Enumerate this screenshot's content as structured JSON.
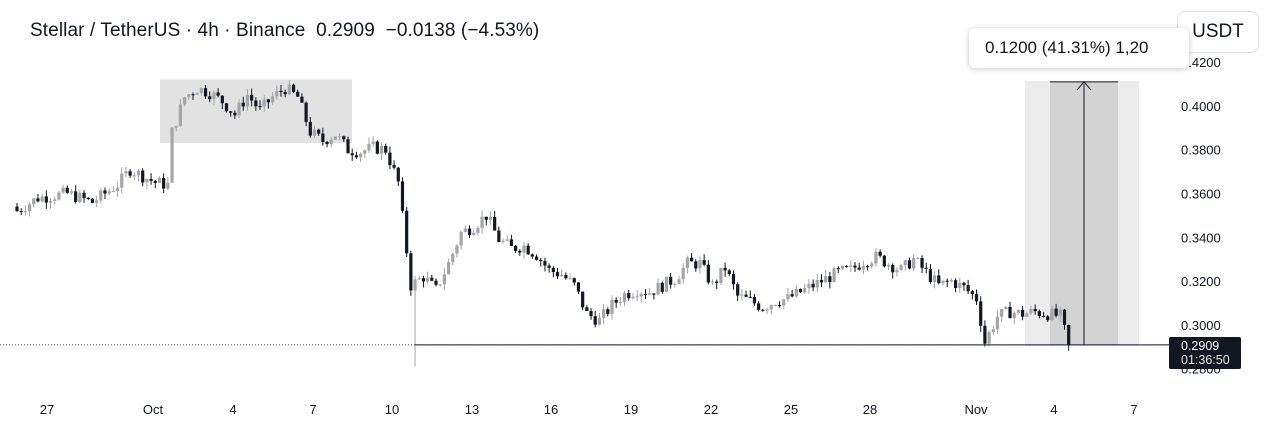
{
  "header": {
    "title": "Stellar / TetherUS · 4h · Binance  0.2909  −0.0138 (−4.53%)",
    "currency_button": "USDT"
  },
  "measure_tool": {
    "label": "0.1200 (41.31%) 1,20",
    "from_price": 0.2909,
    "to_price": 0.4109
  },
  "last_price": {
    "price": "0.2909",
    "countdown": "01:36:50"
  },
  "colors": {
    "up": "#a5a5a5",
    "down": "#131722",
    "highlight_box": "#e2e2e2",
    "measure_box": "#d3d3d3",
    "price_tag": "#131722"
  },
  "chart_data": {
    "type": "candlestick",
    "symbol": "Stellar / TetherUS",
    "interval": "4h",
    "exchange": "Binance",
    "y_ticks": [
      "0.4200",
      "0.4000",
      "0.3800",
      "0.3600",
      "0.3400",
      "0.3200",
      "0.3000",
      "0.2800"
    ],
    "x_ticks": [
      "27",
      "Oct",
      "4",
      "7",
      "10",
      "13",
      "16",
      "19",
      "22",
      "25",
      "28",
      "Nov",
      "4",
      "7"
    ],
    "ylim": [
      0.279,
      0.423
    ],
    "approx_close_path": [
      [
        0,
        0.352
      ],
      [
        5,
        0.358
      ],
      [
        12,
        0.36
      ],
      [
        18,
        0.356
      ],
      [
        24,
        0.364
      ],
      [
        27,
        0.371
      ],
      [
        33,
        0.365
      ],
      [
        36,
        0.364
      ],
      [
        37,
        0.388
      ],
      [
        40,
        0.404
      ],
      [
        43,
        0.408
      ],
      [
        46,
        0.406
      ],
      [
        49,
        0.402
      ],
      [
        52,
        0.396
      ],
      [
        55,
        0.405
      ],
      [
        58,
        0.398
      ],
      [
        61,
        0.404
      ],
      [
        64,
        0.408
      ],
      [
        67,
        0.404
      ],
      [
        70,
        0.388
      ],
      [
        73,
        0.384
      ],
      [
        76,
        0.387
      ],
      [
        79,
        0.38
      ],
      [
        82,
        0.379
      ],
      [
        85,
        0.381
      ],
      [
        88,
        0.38
      ],
      [
        91,
        0.365
      ],
      [
        94,
        0.318
      ],
      [
        97,
        0.322
      ],
      [
        100,
        0.316
      ],
      [
        103,
        0.328
      ],
      [
        106,
        0.342
      ],
      [
        109,
        0.345
      ],
      [
        112,
        0.35
      ],
      [
        115,
        0.339
      ],
      [
        118,
        0.335
      ],
      [
        121,
        0.336
      ],
      [
        124,
        0.332
      ],
      [
        127,
        0.325
      ],
      [
        130,
        0.323
      ],
      [
        133,
        0.318
      ],
      [
        136,
        0.305
      ],
      [
        139,
        0.302
      ],
      [
        142,
        0.309
      ],
      [
        145,
        0.314
      ],
      [
        148,
        0.316
      ],
      [
        151,
        0.315
      ],
      [
        154,
        0.318
      ],
      [
        157,
        0.321
      ],
      [
        160,
        0.328
      ],
      [
        163,
        0.328
      ],
      [
        166,
        0.318
      ],
      [
        169,
        0.326
      ],
      [
        172,
        0.313
      ],
      [
        175,
        0.311
      ],
      [
        178,
        0.308
      ],
      [
        181,
        0.311
      ],
      [
        184,
        0.312
      ],
      [
        187,
        0.315
      ],
      [
        190,
        0.318
      ],
      [
        193,
        0.321
      ],
      [
        196,
        0.324
      ],
      [
        199,
        0.325
      ],
      [
        202,
        0.329
      ],
      [
        205,
        0.331
      ],
      [
        208,
        0.328
      ],
      [
        211,
        0.325
      ],
      [
        214,
        0.33
      ],
      [
        217,
        0.324
      ],
      [
        220,
        0.318
      ],
      [
        223,
        0.32
      ],
      [
        226,
        0.317
      ],
      [
        229,
        0.312
      ],
      [
        231,
        0.292
      ],
      [
        234,
        0.304
      ],
      [
        237,
        0.306
      ],
      [
        240,
        0.305
      ],
      [
        243,
        0.306
      ],
      [
        246,
        0.305
      ],
      [
        249,
        0.304
      ],
      [
        251,
        0.2909
      ]
    ],
    "spike_low": 0.281,
    "support_level": 0.2909,
    "highlight_box": {
      "price_top": 0.412,
      "price_bottom": 0.383
    }
  }
}
